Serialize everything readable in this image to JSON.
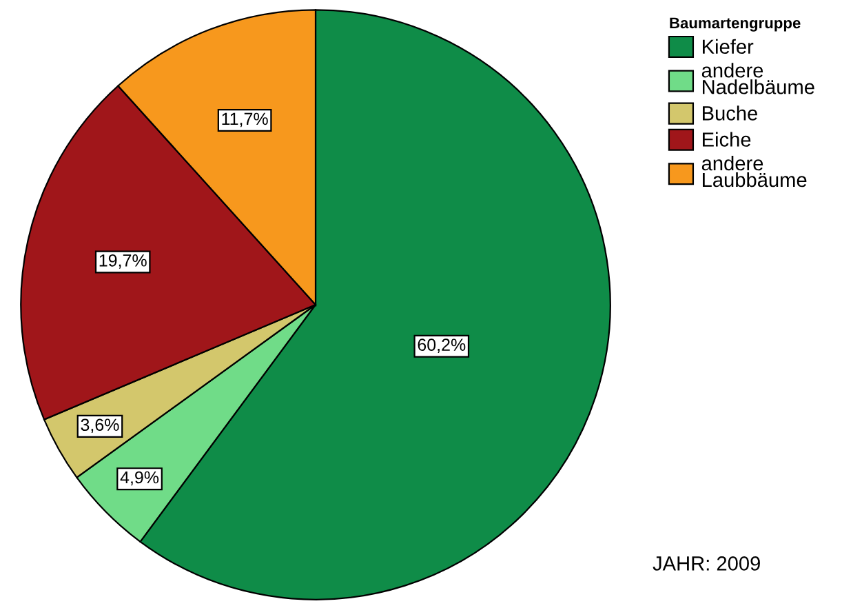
{
  "chart_data": {
    "type": "pie",
    "categories": [
      "Kiefer",
      "andere Nadelbäume",
      "Buche",
      "Eiche",
      "andere Laubbäume"
    ],
    "values": [
      60.2,
      4.9,
      3.6,
      19.7,
      11.7
    ],
    "colors": [
      "#0f8c48",
      "#70dc88",
      "#d3c76c",
      "#a0161a",
      "#f7981d"
    ],
    "value_labels": [
      "60,2%",
      "4,9%",
      "3,6%",
      "19,7%",
      "11,7%"
    ],
    "legend_title": "Baumartengruppe",
    "legend": "top right",
    "annotations": [
      "JAHR: 2009"
    ]
  }
}
